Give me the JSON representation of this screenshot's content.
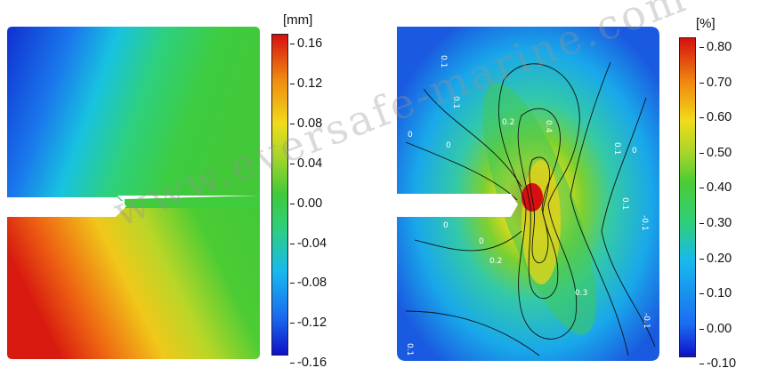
{
  "left_panel": {
    "unit": "[mm]",
    "ticks": [
      "0.16",
      "0.12",
      "0.08",
      "0.04",
      "0.00",
      "-0.04",
      "-0.08",
      "-0.12",
      "-0.16"
    ]
  },
  "right_panel": {
    "unit": "[%]",
    "ticks": [
      "0.80",
      "0.70",
      "0.60",
      "0.50",
      "0.40",
      "0.30",
      "0.20",
      "0.10",
      "0.00",
      "-0.10"
    ],
    "contour_labels": [
      "0.1",
      "0.1",
      "0.2",
      "0.4",
      "0.1",
      "0",
      "0",
      "0",
      "0.1",
      "-0.1",
      "0",
      "0",
      "0.2",
      "0.3",
      "-0.1",
      "0.1"
    ]
  },
  "watermark": "www.eversafe-marine.com",
  "colors": {
    "red": "#d61010",
    "yellow": "#f0dc1a",
    "green": "#3fc93a",
    "cyan": "#17b9ee",
    "blue": "#1010c8"
  }
}
